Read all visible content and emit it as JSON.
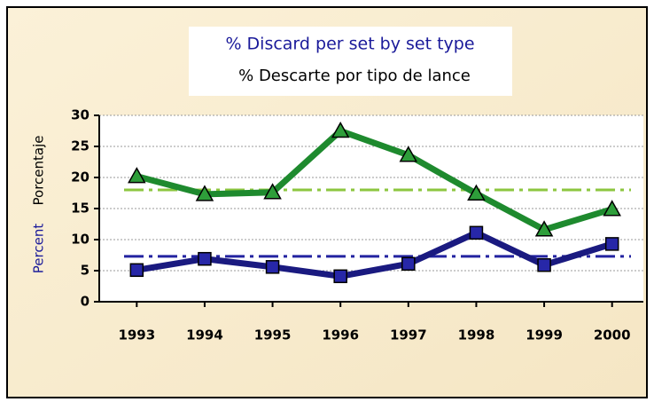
{
  "chart_data": {
    "type": "line",
    "title": "% Discard per set by set type",
    "subtitle": "% Descarte por tipo de lance",
    "y_label": "Percent",
    "y_label_alt": "Porcentaje",
    "categories": [
      "1993",
      "1994",
      "1995",
      "1996",
      "1997",
      "1998",
      "1999",
      "2000"
    ],
    "series": [
      {
        "color": "#1e8a2e",
        "marker_color": "#2e9e3a",
        "values": [
          20.2,
          17.3,
          17.6,
          27.5,
          23.6,
          17.4,
          11.6,
          14.9
        ]
      },
      {
        "color": "#1a1a80",
        "marker_color": "#2727a8",
        "values": [
          5.1,
          6.9,
          5.6,
          4.1,
          6.1,
          11.1,
          5.9,
          9.3
        ]
      }
    ],
    "reference_lines": [
      {
        "value": 18,
        "color": "#8cc63f"
      },
      {
        "value": 7.3,
        "color": "#2323a0"
      }
    ],
    "ylim": [
      0,
      30
    ],
    "yticks": [
      0,
      5,
      10,
      15,
      20,
      25,
      30
    ],
    "grid": true
  }
}
